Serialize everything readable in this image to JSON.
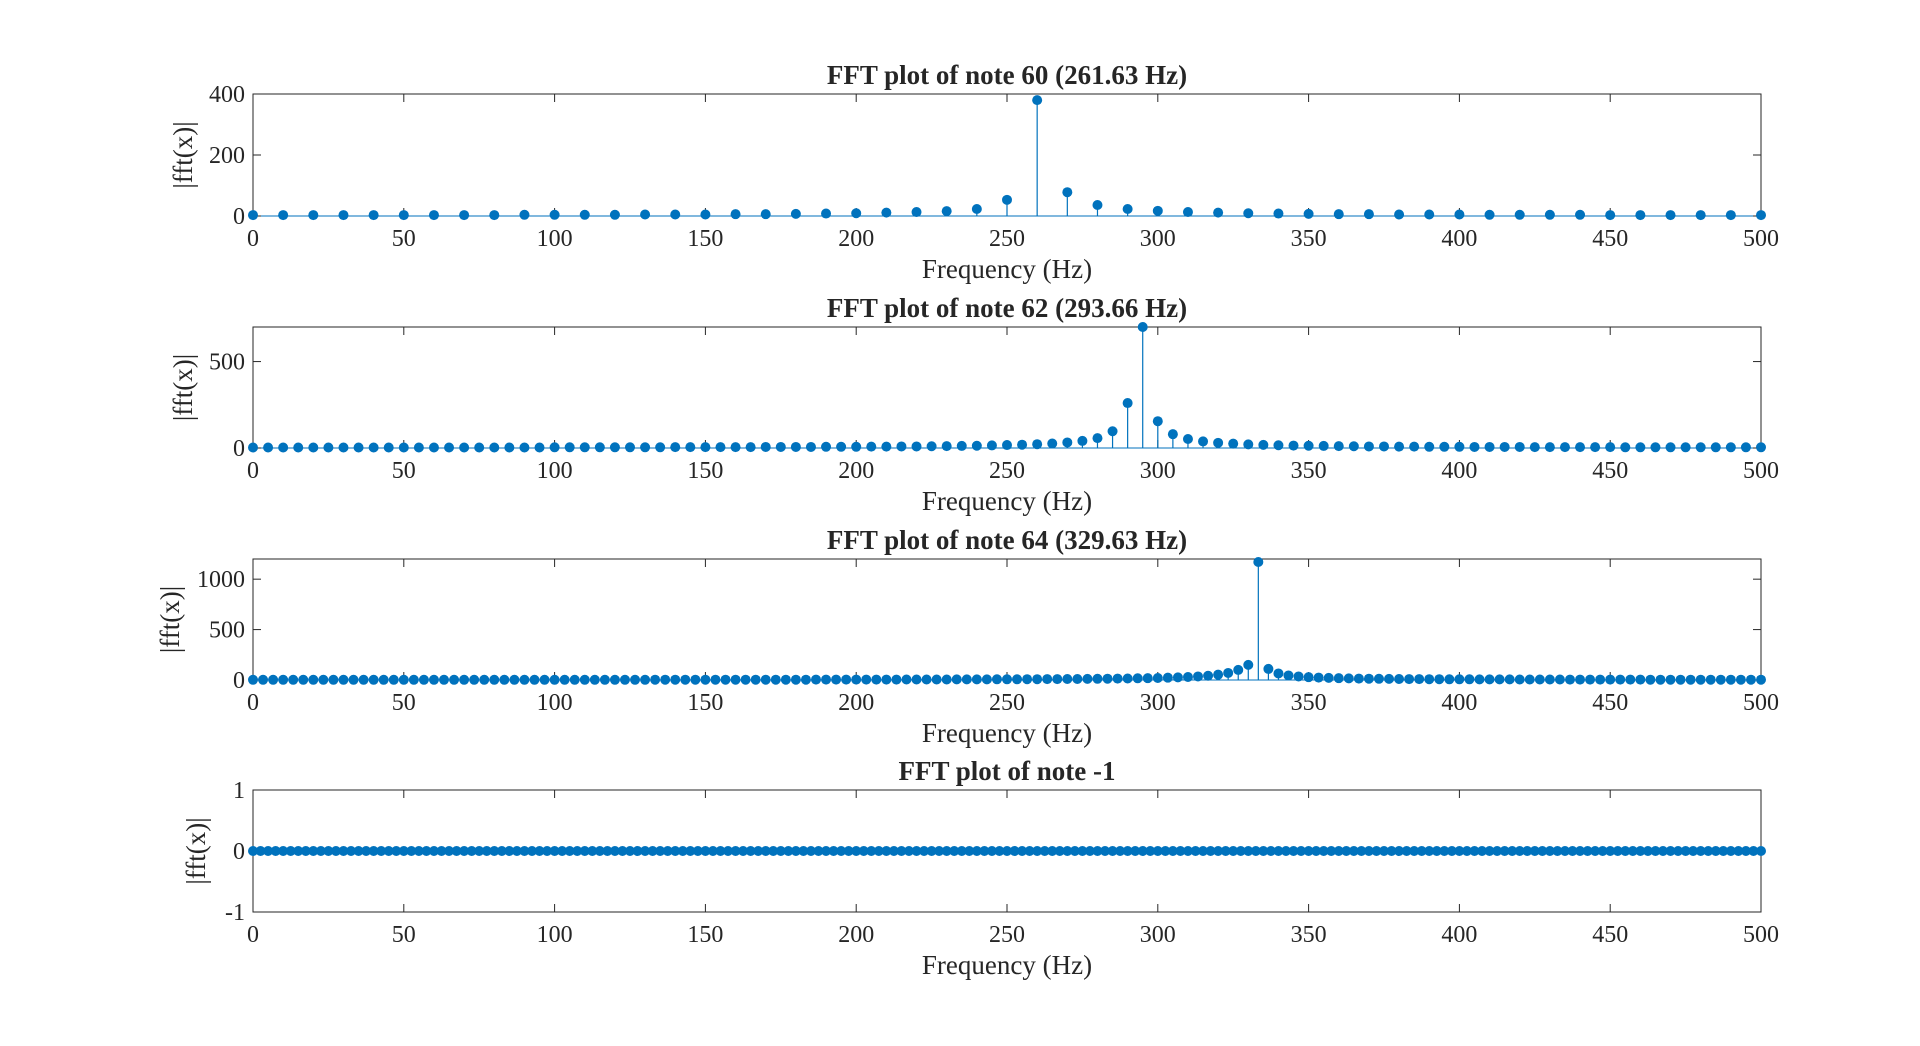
{
  "chart_data": [
    {
      "type": "stem",
      "title": "FFT plot of note 60 (261.63 Hz)",
      "xlabel": "Frequency (Hz)",
      "ylabel": "|fft(x)|",
      "xlim": [
        0,
        500
      ],
      "ylim": [
        0,
        400
      ],
      "xticks": [
        0,
        50,
        100,
        150,
        200,
        250,
        300,
        350,
        400,
        450,
        500
      ],
      "yticks": [
        0,
        200,
        400
      ],
      "grid": false,
      "color": "#0072BD",
      "x": [
        0,
        10,
        20,
        30,
        40,
        50,
        60,
        70,
        80,
        90,
        100,
        110,
        120,
        130,
        140,
        150,
        160,
        170,
        180,
        190,
        200,
        210,
        220,
        230,
        240,
        250,
        260,
        270,
        280,
        290,
        300,
        310,
        320,
        330,
        340,
        350,
        360,
        370,
        380,
        390,
        400,
        410,
        420,
        430,
        440,
        450,
        460,
        470,
        480,
        490,
        500
      ],
      "y": [
        3,
        3,
        3,
        3,
        3,
        3,
        3,
        3,
        3,
        4,
        4,
        4,
        4,
        5,
        5,
        5,
        6,
        6,
        7,
        8,
        9,
        11,
        13,
        16,
        23,
        53,
        380,
        78,
        36,
        23,
        17,
        13,
        11,
        9,
        8,
        7,
        6,
        6,
        5,
        5,
        5,
        4,
        4,
        4,
        4,
        3,
        3,
        3,
        3,
        3,
        3
      ]
    },
    {
      "type": "stem",
      "title": "FFT plot of note 62 (293.66 Hz)",
      "xlabel": "Frequency (Hz)",
      "ylabel": "|fft(x)|",
      "xlim": [
        0,
        500
      ],
      "ylim": [
        0,
        700
      ],
      "xticks": [
        0,
        50,
        100,
        150,
        200,
        250,
        300,
        350,
        400,
        450,
        500
      ],
      "yticks": [
        0,
        500
      ],
      "grid": false,
      "color": "#0072BD",
      "x": [
        0,
        5,
        10,
        15,
        20,
        25,
        30,
        35,
        40,
        45,
        50,
        55,
        60,
        65,
        70,
        75,
        80,
        85,
        90,
        95,
        100,
        105,
        110,
        115,
        120,
        125,
        130,
        135,
        140,
        145,
        150,
        155,
        160,
        165,
        170,
        175,
        180,
        185,
        190,
        195,
        200,
        205,
        210,
        215,
        220,
        225,
        230,
        235,
        240,
        245,
        250,
        255,
        260,
        265,
        270,
        275,
        280,
        285,
        290,
        295,
        300,
        305,
        310,
        315,
        320,
        325,
        330,
        335,
        340,
        345,
        350,
        355,
        360,
        365,
        370,
        375,
        380,
        385,
        390,
        395,
        400,
        405,
        410,
        415,
        420,
        425,
        430,
        435,
        440,
        445,
        450,
        455,
        460,
        465,
        470,
        475,
        480,
        485,
        490,
        495,
        500
      ],
      "y": [
        3,
        3,
        3,
        3,
        3,
        3,
        3,
        3,
        3,
        3,
        3,
        3,
        3,
        3,
        3,
        3,
        3,
        3,
        3,
        3,
        4,
        4,
        4,
        4,
        4,
        4,
        4,
        4,
        5,
        5,
        5,
        5,
        5,
        5,
        6,
        6,
        6,
        6,
        7,
        7,
        7,
        8,
        8,
        9,
        9,
        10,
        11,
        12,
        13,
        15,
        17,
        19,
        22,
        26,
        32,
        41,
        57,
        97,
        260,
        700,
        155,
        80,
        52,
        38,
        30,
        25,
        21,
        18,
        16,
        14,
        13,
        12,
        11,
        10,
        9,
        9,
        8,
        8,
        7,
        7,
        7,
        6,
        6,
        6,
        6,
        5,
        5,
        5,
        5,
        5,
        5,
        4,
        4,
        4,
        4,
        4,
        4,
        4,
        4,
        4,
        4
      ]
    },
    {
      "type": "stem",
      "title": "FFT plot of note 64 (329.63 Hz)",
      "xlabel": "Frequency (Hz)",
      "ylabel": "|fft(x)|",
      "xlim": [
        0,
        500
      ],
      "ylim": [
        0,
        1200
      ],
      "xticks": [
        0,
        50,
        100,
        150,
        200,
        250,
        300,
        350,
        400,
        450,
        500
      ],
      "yticks": [
        0,
        500,
        1000
      ],
      "grid": false,
      "color": "#0072BD",
      "x": [
        0,
        3.33,
        6.67,
        10,
        13.33,
        16.67,
        20,
        23.33,
        26.67,
        30,
        33.33,
        36.67,
        40,
        43.33,
        46.67,
        50,
        53.33,
        56.67,
        60,
        63.33,
        66.67,
        70,
        73.33,
        76.67,
        80,
        83.33,
        86.67,
        90,
        93.33,
        96.67,
        100,
        103.33,
        106.67,
        110,
        113.33,
        116.67,
        120,
        123.33,
        126.67,
        130,
        133.33,
        136.67,
        140,
        143.33,
        146.67,
        150,
        153.33,
        156.67,
        160,
        163.33,
        166.67,
        170,
        173.33,
        176.67,
        180,
        183.33,
        186.67,
        190,
        193.33,
        196.67,
        200,
        203.33,
        206.67,
        210,
        213.33,
        216.67,
        220,
        223.33,
        226.67,
        230,
        233.33,
        236.67,
        240,
        243.33,
        246.67,
        250,
        253.33,
        256.67,
        260,
        263.33,
        266.67,
        270,
        273.33,
        276.67,
        280,
        283.33,
        286.67,
        290,
        293.33,
        296.67,
        300,
        303.33,
        306.67,
        310,
        313.33,
        316.67,
        320,
        323.33,
        326.67,
        330,
        333.33,
        336.67,
        340,
        343.33,
        346.67,
        350,
        353.33,
        356.67,
        360,
        363.33,
        366.67,
        370,
        373.33,
        376.67,
        380,
        383.33,
        386.67,
        390,
        393.33,
        396.67,
        400,
        403.33,
        406.67,
        410,
        413.33,
        416.67,
        420,
        423.33,
        426.67,
        430,
        433.33,
        436.67,
        440,
        443.33,
        446.67,
        450,
        453.33,
        456.67,
        460,
        463.33,
        466.67,
        470,
        473.33,
        476.67,
        480,
        483.33,
        486.67,
        490,
        493.33,
        496.67,
        500
      ],
      "y": [
        2,
        2,
        2,
        2,
        2,
        2,
        2,
        2,
        2,
        2,
        2,
        2,
        2,
        2,
        2,
        2,
        2,
        2,
        2,
        2,
        2,
        2,
        2,
        2,
        2,
        2,
        2,
        2,
        2,
        2,
        2,
        2,
        2,
        2,
        2,
        2,
        2,
        2,
        2,
        2,
        3,
        3,
        3,
        3,
        3,
        3,
        3,
        3,
        3,
        3,
        3,
        3,
        3,
        3,
        3,
        3,
        4,
        4,
        4,
        4,
        4,
        4,
        4,
        4,
        4,
        5,
        5,
        5,
        5,
        5,
        6,
        6,
        6,
        6,
        7,
        7,
        7,
        8,
        8,
        9,
        9,
        10,
        10,
        11,
        12,
        13,
        14,
        15,
        17,
        18,
        20,
        23,
        26,
        30,
        35,
        42,
        53,
        70,
        100,
        150,
        1170,
        110,
        65,
        45,
        35,
        28,
        24,
        21,
        18,
        16,
        14,
        13,
        12,
        11,
        10,
        9,
        9,
        8,
        8,
        7,
        7,
        7,
        6,
        6,
        6,
        6,
        5,
        5,
        5,
        5,
        5,
        4,
        4,
        4,
        4,
        4,
        4,
        4,
        4,
        3,
        3,
        3,
        3,
        3,
        3,
        3,
        3,
        3,
        3,
        3,
        3
      ]
    },
    {
      "type": "stem",
      "title": "FFT plot of note -1",
      "xlabel": "Frequency (Hz)",
      "ylabel": "|fft(x)|",
      "xlim": [
        0,
        500
      ],
      "ylim": [
        -1,
        1
      ],
      "xticks": [
        0,
        50,
        100,
        150,
        200,
        250,
        300,
        350,
        400,
        450,
        500
      ],
      "yticks": [
        -1,
        0,
        1
      ],
      "grid": false,
      "color": "#0072BD",
      "x": [
        0,
        2.5,
        5,
        7.5,
        10,
        12.5,
        15,
        17.5,
        20,
        22.5,
        25,
        27.5,
        30,
        32.5,
        35,
        37.5,
        40,
        42.5,
        45,
        47.5,
        50,
        52.5,
        55,
        57.5,
        60,
        62.5,
        65,
        67.5,
        70,
        72.5,
        75,
        77.5,
        80,
        82.5,
        85,
        87.5,
        90,
        92.5,
        95,
        97.5,
        100,
        102.5,
        105,
        107.5,
        110,
        112.5,
        115,
        117.5,
        120,
        122.5,
        125,
        127.5,
        130,
        132.5,
        135,
        137.5,
        140,
        142.5,
        145,
        147.5,
        150,
        152.5,
        155,
        157.5,
        160,
        162.5,
        165,
        167.5,
        170,
        172.5,
        175,
        177.5,
        180,
        182.5,
        185,
        187.5,
        190,
        192.5,
        195,
        197.5,
        200,
        202.5,
        205,
        207.5,
        210,
        212.5,
        215,
        217.5,
        220,
        222.5,
        225,
        227.5,
        230,
        232.5,
        235,
        237.5,
        240,
        242.5,
        245,
        247.5,
        250,
        252.5,
        255,
        257.5,
        260,
        262.5,
        265,
        267.5,
        270,
        272.5,
        275,
        277.5,
        280,
        282.5,
        285,
        287.5,
        290,
        292.5,
        295,
        297.5,
        300,
        302.5,
        305,
        307.5,
        310,
        312.5,
        315,
        317.5,
        320,
        322.5,
        325,
        327.5,
        330,
        332.5,
        335,
        337.5,
        340,
        342.5,
        345,
        347.5,
        350,
        352.5,
        355,
        357.5,
        360,
        362.5,
        365,
        367.5,
        370,
        372.5,
        375,
        377.5,
        380,
        382.5,
        385,
        387.5,
        390,
        392.5,
        395,
        397.5,
        400,
        402.5,
        405,
        407.5,
        410,
        412.5,
        415,
        417.5,
        420,
        422.5,
        425,
        427.5,
        430,
        432.5,
        435,
        437.5,
        440,
        442.5,
        445,
        447.5,
        450,
        452.5,
        455,
        457.5,
        460,
        462.5,
        465,
        467.5,
        470,
        472.5,
        475,
        477.5,
        480,
        482.5,
        485,
        487.5,
        490,
        492.5,
        495,
        497.5,
        500
      ],
      "y": [
        0,
        0,
        0,
        0,
        0,
        0,
        0,
        0,
        0,
        0,
        0,
        0,
        0,
        0,
        0,
        0,
        0,
        0,
        0,
        0,
        0,
        0,
        0,
        0,
        0,
        0,
        0,
        0,
        0,
        0,
        0,
        0,
        0,
        0,
        0,
        0,
        0,
        0,
        0,
        0,
        0,
        0,
        0,
        0,
        0,
        0,
        0,
        0,
        0,
        0,
        0,
        0,
        0,
        0,
        0,
        0,
        0,
        0,
        0,
        0,
        0,
        0,
        0,
        0,
        0,
        0,
        0,
        0,
        0,
        0,
        0,
        0,
        0,
        0,
        0,
        0,
        0,
        0,
        0,
        0,
        0,
        0,
        0,
        0,
        0,
        0,
        0,
        0,
        0,
        0,
        0,
        0,
        0,
        0,
        0,
        0,
        0,
        0,
        0,
        0,
        0,
        0,
        0,
        0,
        0,
        0,
        0,
        0,
        0,
        0,
        0,
        0,
        0,
        0,
        0,
        0,
        0,
        0,
        0,
        0,
        0,
        0,
        0,
        0,
        0,
        0,
        0,
        0,
        0,
        0,
        0,
        0,
        0,
        0,
        0,
        0,
        0,
        0,
        0,
        0,
        0,
        0,
        0,
        0,
        0,
        0,
        0,
        0,
        0,
        0,
        0,
        0,
        0,
        0,
        0,
        0,
        0,
        0,
        0,
        0,
        0,
        0,
        0,
        0,
        0,
        0,
        0,
        0,
        0,
        0,
        0,
        0,
        0,
        0,
        0,
        0,
        0,
        0,
        0,
        0,
        0,
        0,
        0,
        0,
        0,
        0,
        0,
        0,
        0,
        0,
        0,
        0,
        0,
        0,
        0,
        0,
        0,
        0,
        0,
        0,
        0
      ]
    }
  ]
}
